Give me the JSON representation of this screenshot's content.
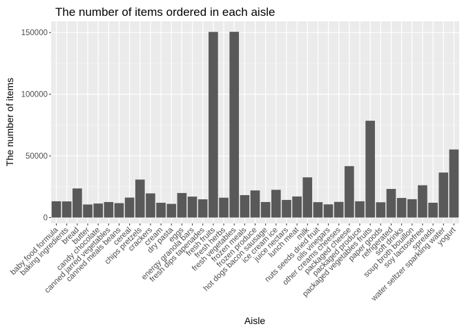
{
  "chart_data": {
    "type": "bar",
    "title": "The number of items ordered in each aisle",
    "xlabel": "Aisle",
    "ylabel": "The number of items",
    "ylim": [
      0,
      160000
    ],
    "yticks": [
      0,
      50000,
      100000,
      150000
    ],
    "ytick_labels": [
      "0",
      "50000",
      "100000",
      "150000"
    ],
    "grid": true,
    "legend": "none",
    "bar_color": "#595959",
    "panel_color": "#ebebeb",
    "categories": [
      "baby food formula",
      "baking ingredients",
      "bread",
      "butter",
      "candy chocolate",
      "canned jarred vegetables",
      "canned meals beans",
      "cereal",
      "chips pretzels",
      "crackers",
      "cream",
      "dry pasta",
      "eggs",
      "energy granola bars",
      "fresh dips tapenades",
      "fresh fruits",
      "fresh herbs",
      "fresh vegetables",
      "frozen meals",
      "frozen produce",
      "hot dogs bacon sausage",
      "ice cream ice",
      "juice nectars",
      "lunch meat",
      "milk",
      "nuts seeds dried fruit",
      "oils vinegars",
      "other creams cheeses",
      "packaged cheese",
      "packaged produce",
      "packaged vegetables fruits",
      "paper goods",
      "refrigerated",
      "soft drinks",
      "soup broth bouillon",
      "soy lactosefree",
      "spreads",
      "water seltzer sparkling water",
      "yogurt"
    ],
    "values": [
      13200,
      13100,
      23600,
      10600,
      11400,
      12600,
      11700,
      16200,
      30800,
      19600,
      12000,
      11100,
      19900,
      17000,
      14800,
      150500,
      16100,
      150600,
      18200,
      22000,
      12600,
      22500,
      14300,
      17100,
      32600,
      12500,
      10700,
      12700,
      41700,
      13200,
      78500,
      12400,
      23200,
      15900,
      14900,
      26200,
      12000,
      36500,
      55200
    ]
  }
}
